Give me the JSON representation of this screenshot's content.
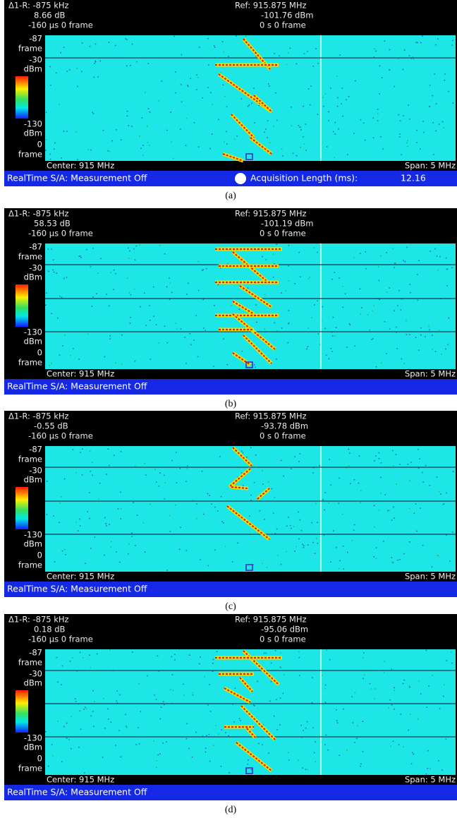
{
  "panels": [
    {
      "header": {
        "delta": "Δ1-R: -875 kHz",
        "delta_db": "8.66 dB",
        "delta_time": "-160 µs  0 frame",
        "ref": "Ref: 915.875 MHz",
        "ref_level": "-101.76 dBm",
        "ref_time": "0 s  0 frame"
      },
      "scale": {
        "top_frame": "-87",
        "top_frame_unit": "frame",
        "top_level": "-30",
        "top_level_unit": "dBm",
        "bottom_level": "-130",
        "bottom_level_unit": "dBm",
        "bottom_frame": "0",
        "bottom_frame_unit": "frame"
      },
      "center": "Center: 915 MHz",
      "span": "Span: 5 MHz",
      "status": "RealTime S/A: Measurement Off",
      "acquisition_label": "Acquisition Length (ms):",
      "acquisition_value": "12.16",
      "caption": "(a)"
    },
    {
      "header": {
        "delta": "Δ1-R: -875 kHz",
        "delta_db": "58.53 dB",
        "delta_time": "-160 µs  0 frame",
        "ref": "Ref: 915.875 MHz",
        "ref_level": "-101.19 dBm",
        "ref_time": "0 s  0 frame"
      },
      "scale": {
        "top_frame": "-87",
        "top_frame_unit": "frame",
        "top_level": "-30",
        "top_level_unit": "dBm",
        "bottom_level": "-130",
        "bottom_level_unit": "dBm",
        "bottom_frame": "0",
        "bottom_frame_unit": "frame"
      },
      "center": "Center: 915 MHz",
      "span": "Span: 5 MHz",
      "status": "RealTime S/A: Measurement Off",
      "caption": "(b)"
    },
    {
      "header": {
        "delta": "Δ1-R: -875 kHz",
        "delta_db": "-0.55 dB",
        "delta_time": "-160 µs  0 frame",
        "ref": "Ref: 915.875 MHz",
        "ref_level": "-93.78 dBm",
        "ref_time": "0 s  0 frame"
      },
      "scale": {
        "top_frame": "-87",
        "top_frame_unit": "frame",
        "top_level": "-30",
        "top_level_unit": "dBm",
        "bottom_level": "-130",
        "bottom_level_unit": "dBm",
        "bottom_frame": "0",
        "bottom_frame_unit": "frame"
      },
      "center": "Center: 915 MHz",
      "span": "Span: 5 MHz",
      "status": "RealTime S/A: Measurement Off",
      "caption": "(c)"
    },
    {
      "header": {
        "delta": "Δ1-R: -875 kHz",
        "delta_db": "0.18 dB",
        "delta_time": "-160 µs  0 frame",
        "ref": "Ref: 915.875 MHz",
        "ref_level": "-95.06 dBm",
        "ref_time": "0 s  0 frame"
      },
      "scale": {
        "top_frame": "-87",
        "top_frame_unit": "frame",
        "top_level": "-30",
        "top_level_unit": "dBm",
        "bottom_level": "-130",
        "bottom_level_unit": "dBm",
        "bottom_frame": "0",
        "bottom_frame_unit": "frame"
      },
      "center": "Center: 915 MHz",
      "span": "Span: 5 MHz",
      "status": "RealTime S/A: Measurement Off",
      "caption": "(d)"
    }
  ]
}
